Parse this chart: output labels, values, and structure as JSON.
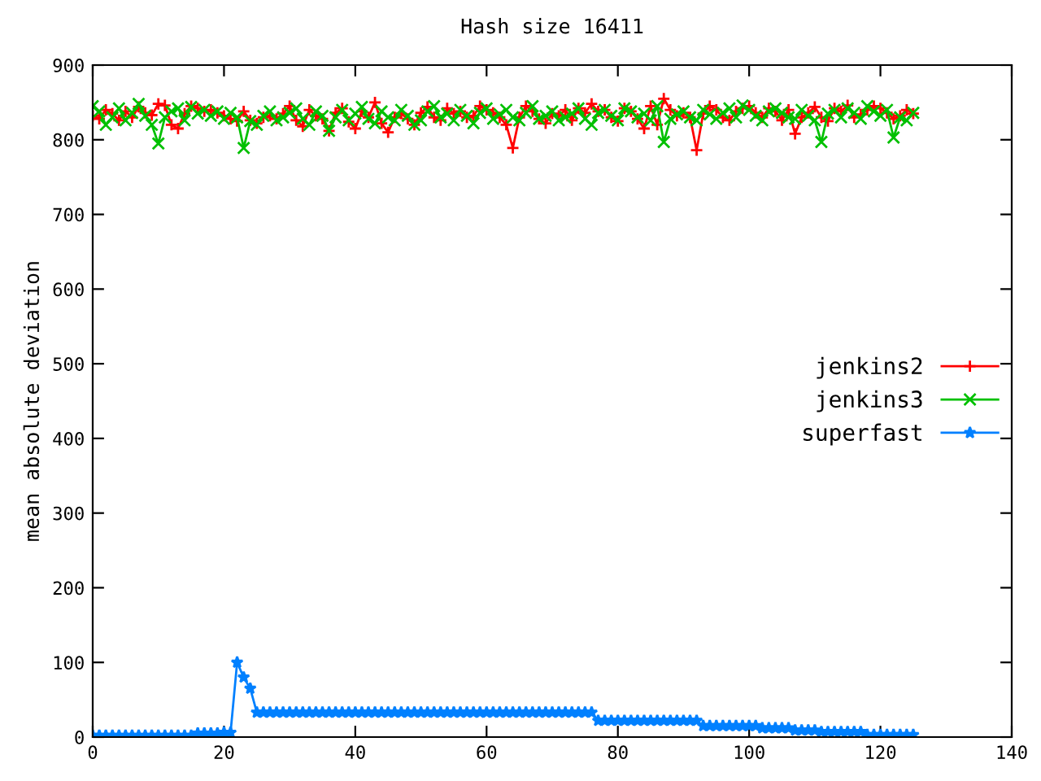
{
  "chart_data": {
    "type": "line",
    "title": "Hash size 16411",
    "ylabel": "mean absolute deviation",
    "x": [
      0,
      1,
      2,
      3,
      4,
      5,
      6,
      7,
      8,
      9,
      10,
      11,
      12,
      13,
      14,
      15,
      16,
      17,
      18,
      19,
      20,
      21,
      22,
      23,
      24,
      25,
      26,
      27,
      28,
      29,
      30,
      31,
      32,
      33,
      34,
      35,
      36,
      37,
      38,
      39,
      40,
      41,
      42,
      43,
      44,
      45,
      46,
      47,
      48,
      49,
      50,
      51,
      52,
      53,
      54,
      55,
      56,
      57,
      58,
      59,
      60,
      61,
      62,
      63,
      64,
      65,
      66,
      67,
      68,
      69,
      70,
      71,
      72,
      73,
      74,
      75,
      76,
      77,
      78,
      79,
      80,
      81,
      82,
      83,
      84,
      85,
      86,
      87,
      88,
      89,
      90,
      91,
      92,
      93,
      94,
      95,
      96,
      97,
      98,
      99,
      100,
      101,
      102,
      103,
      104,
      105,
      106,
      107,
      108,
      109,
      110,
      111,
      112,
      113,
      114,
      115,
      116,
      117,
      118,
      119,
      120,
      121,
      122,
      123,
      124,
      125
    ],
    "xlim": [
      0,
      140
    ],
    "ylim": [
      0,
      900
    ],
    "xticks": [
      0,
      20,
      40,
      60,
      80,
      100,
      120,
      140
    ],
    "yticks": [
      0,
      100,
      200,
      300,
      400,
      500,
      600,
      700,
      800,
      900
    ],
    "legend": "right",
    "grid": false,
    "series": [
      {
        "name": "jenkins2",
        "color": "#ff0000",
        "marker": "cross",
        "values": [
          832,
          828,
          840,
          835,
          826,
          838,
          830,
          844,
          836,
          833,
          848,
          846,
          820,
          815,
          835,
          845,
          842,
          838,
          840,
          836,
          832,
          828,
          825,
          838,
          826,
          822,
          830,
          832,
          828,
          835,
          845,
          826,
          818,
          840,
          832,
          828,
          812,
          836,
          842,
          824,
          815,
          838,
          830,
          850,
          822,
          810,
          830,
          835,
          828,
          820,
          836,
          844,
          830,
          826,
          842,
          835,
          838,
          830,
          832,
          845,
          840,
          836,
          830,
          820,
          789,
          830,
          845,
          838,
          828,
          822,
          835,
          832,
          840,
          826,
          842,
          836,
          848,
          838,
          840,
          830,
          825,
          842,
          838,
          828,
          815,
          845,
          820,
          855,
          840,
          832,
          836,
          830,
          786,
          835,
          845,
          840,
          830,
          826,
          838,
          842,
          845,
          836,
          830,
          842,
          838,
          826,
          840,
          808,
          830,
          836,
          844,
          830,
          825,
          842,
          838,
          846,
          830,
          834,
          840,
          845,
          842,
          836,
          828,
          832,
          840,
          835
        ]
      },
      {
        "name": "jenkins3",
        "color": "#00c000",
        "marker": "x",
        "values": [
          845,
          838,
          820,
          830,
          842,
          826,
          836,
          848,
          832,
          820,
          795,
          830,
          838,
          842,
          826,
          844,
          835,
          840,
          832,
          838,
          828,
          836,
          830,
          789,
          825,
          820,
          832,
          838,
          826,
          830,
          836,
          842,
          828,
          820,
          838,
          832,
          812,
          830,
          840,
          826,
          835,
          844,
          828,
          822,
          838,
          830,
          826,
          840,
          832,
          820,
          826,
          838,
          845,
          830,
          835,
          826,
          840,
          832,
          822,
          836,
          842,
          828,
          834,
          840,
          830,
          826,
          836,
          845,
          828,
          832,
          838,
          826,
          830,
          835,
          842,
          828,
          820,
          836,
          840,
          832,
          826,
          842,
          838,
          830,
          835,
          826,
          845,
          797,
          828,
          834,
          838,
          830,
          826,
          840,
          834,
          828,
          836,
          842,
          830,
          846,
          840,
          832,
          826,
          838,
          842,
          836,
          830,
          828,
          840,
          832,
          826,
          797,
          835,
          840,
          830,
          842,
          836,
          828,
          845,
          838,
          832,
          840,
          803,
          830,
          826,
          836
        ]
      },
      {
        "name": "superfast",
        "color": "#0080ff",
        "marker": "star",
        "values": [
          2,
          2,
          2,
          2,
          2,
          2,
          2,
          2,
          2,
          2,
          2,
          2,
          2,
          2,
          2,
          2,
          5,
          5,
          5,
          5,
          6,
          6,
          100,
          80,
          65,
          33,
          33,
          33,
          33,
          33,
          33,
          33,
          33,
          33,
          33,
          33,
          33,
          33,
          33,
          33,
          33,
          33,
          33,
          33,
          33,
          33,
          33,
          33,
          33,
          33,
          33,
          33,
          33,
          33,
          33,
          33,
          33,
          33,
          33,
          33,
          33,
          33,
          33,
          33,
          33,
          33,
          33,
          33,
          33,
          33,
          33,
          33,
          33,
          33,
          33,
          33,
          33,
          22,
          22,
          22,
          22,
          22,
          22,
          22,
          22,
          22,
          22,
          22,
          22,
          22,
          22,
          22,
          22,
          15,
          15,
          15,
          15,
          15,
          15,
          15,
          15,
          15,
          12,
          12,
          12,
          12,
          12,
          9,
          9,
          9,
          9,
          7,
          7,
          7,
          7,
          7,
          7,
          7,
          3,
          3,
          3,
          3,
          3,
          3,
          3,
          3
        ]
      }
    ]
  }
}
